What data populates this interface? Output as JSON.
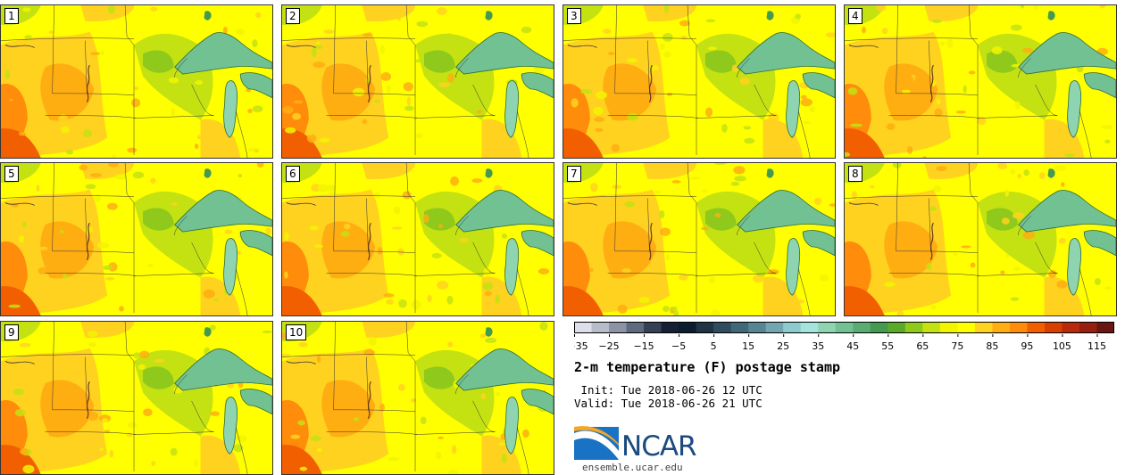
{
  "panels": [
    {
      "label": "1"
    },
    {
      "label": "2"
    },
    {
      "label": "3"
    },
    {
      "label": "4"
    },
    {
      "label": "5"
    },
    {
      "label": "6"
    },
    {
      "label": "7"
    },
    {
      "label": "8"
    },
    {
      "label": "9"
    },
    {
      "label": "10"
    }
  ],
  "colorbar": {
    "bins_F": [
      -35,
      -30,
      -25,
      -20,
      -15,
      -10,
      -5,
      0,
      5,
      10,
      15,
      20,
      25,
      30,
      35,
      40,
      45,
      50,
      55,
      60,
      65,
      70,
      75,
      80,
      85,
      90,
      95,
      100,
      105,
      110,
      115,
      120
    ],
    "colors": [
      "#dde0ea",
      "#b7bccb",
      "#8c93a4",
      "#5f6a7e",
      "#344054",
      "#162033",
      "#0d1b2e",
      "#1f3345",
      "#2f4c5e",
      "#406879",
      "#568593",
      "#72a6b0",
      "#8fcbcc",
      "#a4e4dd",
      "#8ed4b1",
      "#72c193",
      "#59ad72",
      "#449a4f",
      "#5aa928",
      "#8fc91c",
      "#c4e212",
      "#f2f500",
      "#ffff00",
      "#ffd21f",
      "#ffae12",
      "#ff8c0a",
      "#f25f00",
      "#d84000",
      "#b82a0c",
      "#961f0f",
      "#6b1711"
    ],
    "tick_labels": [
      "−35",
      "−25",
      "−15",
      "−5",
      "5",
      "15",
      "25",
      "35",
      "45",
      "55",
      "65",
      "75",
      "85",
      "95",
      "105",
      "115"
    ]
  },
  "title": "2-m temperature (F) postage stamp",
  "init_text": " Init: Tue 2018-06-26 12 UTC",
  "valid_text": "Valid: Tue 2018-06-26 21 UTC",
  "logo": {
    "text": "NCAR",
    "website": "ensemble.ucar.edu"
  }
}
